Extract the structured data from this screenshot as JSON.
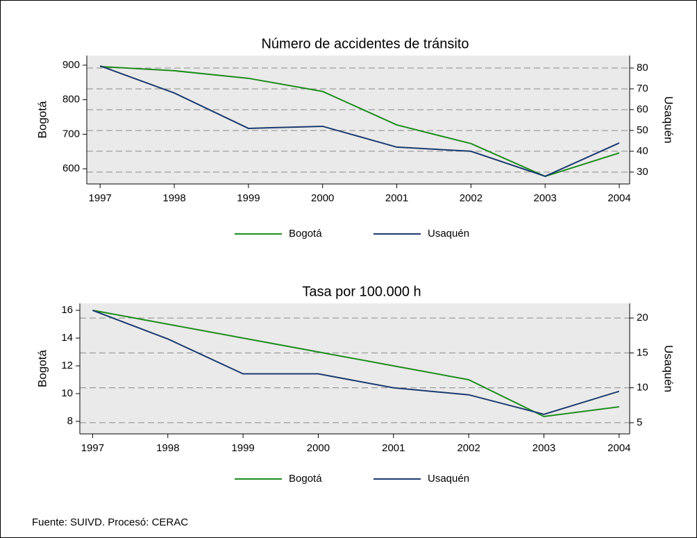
{
  "chart_data": [
    {
      "type": "line",
      "title": "Número de accidentes de tránsito",
      "ylabel": "Bogotá",
      "y2label": "Usaquén",
      "x": [
        1997,
        1998,
        1999,
        2000,
        2001,
        2002,
        2003,
        2004
      ],
      "xlim": [
        1996.82,
        2004.14
      ],
      "xticks": [
        1997,
        1998,
        1999,
        2000,
        2001,
        2002,
        2003,
        2004
      ],
      "ylim": [
        556,
        928
      ],
      "yticks": [
        600,
        700,
        800,
        900
      ],
      "y2lim": [
        24.3,
        86
      ],
      "y2ticks": [
        30,
        40,
        50,
        60,
        70,
        80
      ],
      "grid": "y2",
      "legend": "bottom",
      "series": [
        {
          "name": "Bogotá",
          "color": "#1e8c1e",
          "values": [
            896,
            884,
            862,
            824,
            727,
            673,
            578,
            646
          ]
        },
        {
          "name": "Usaquén",
          "color": "#1a3a6e",
          "axis": "y2",
          "values": [
            81,
            68,
            51,
            52,
            42,
            40,
            28,
            44
          ]
        }
      ]
    },
    {
      "type": "line",
      "title": "Tasa por 100.000 h",
      "ylabel": "Bogotá",
      "y2label": "Usaquén",
      "x": [
        1997,
        1998,
        1999,
        2000,
        2001,
        2002,
        2003,
        2004
      ],
      "xlim": [
        1996.83,
        2004.14
      ],
      "xticks": [
        1997,
        1998,
        1999,
        2000,
        2001,
        2002,
        2003,
        2004
      ],
      "ylim": [
        7.1,
        16.5
      ],
      "yticks": [
        8,
        10,
        12,
        14,
        16
      ],
      "y2lim": [
        3.4,
        22.1
      ],
      "y2ticks": [
        5,
        10,
        15,
        20
      ],
      "grid": "y2",
      "legend": "bottom",
      "series": [
        {
          "name": "Bogotá",
          "color": "#1e8c1e",
          "values": [
            16,
            15,
            14,
            13,
            12,
            11,
            8.35,
            9.05
          ]
        },
        {
          "name": "Usaquén",
          "color": "#1a3a6e",
          "axis": "y2",
          "values": [
            21.1,
            17,
            12,
            12,
            10,
            9,
            6.2,
            9.5
          ]
        }
      ]
    }
  ],
  "source": "Fuente: SUIVD. Procesó: CERAC"
}
